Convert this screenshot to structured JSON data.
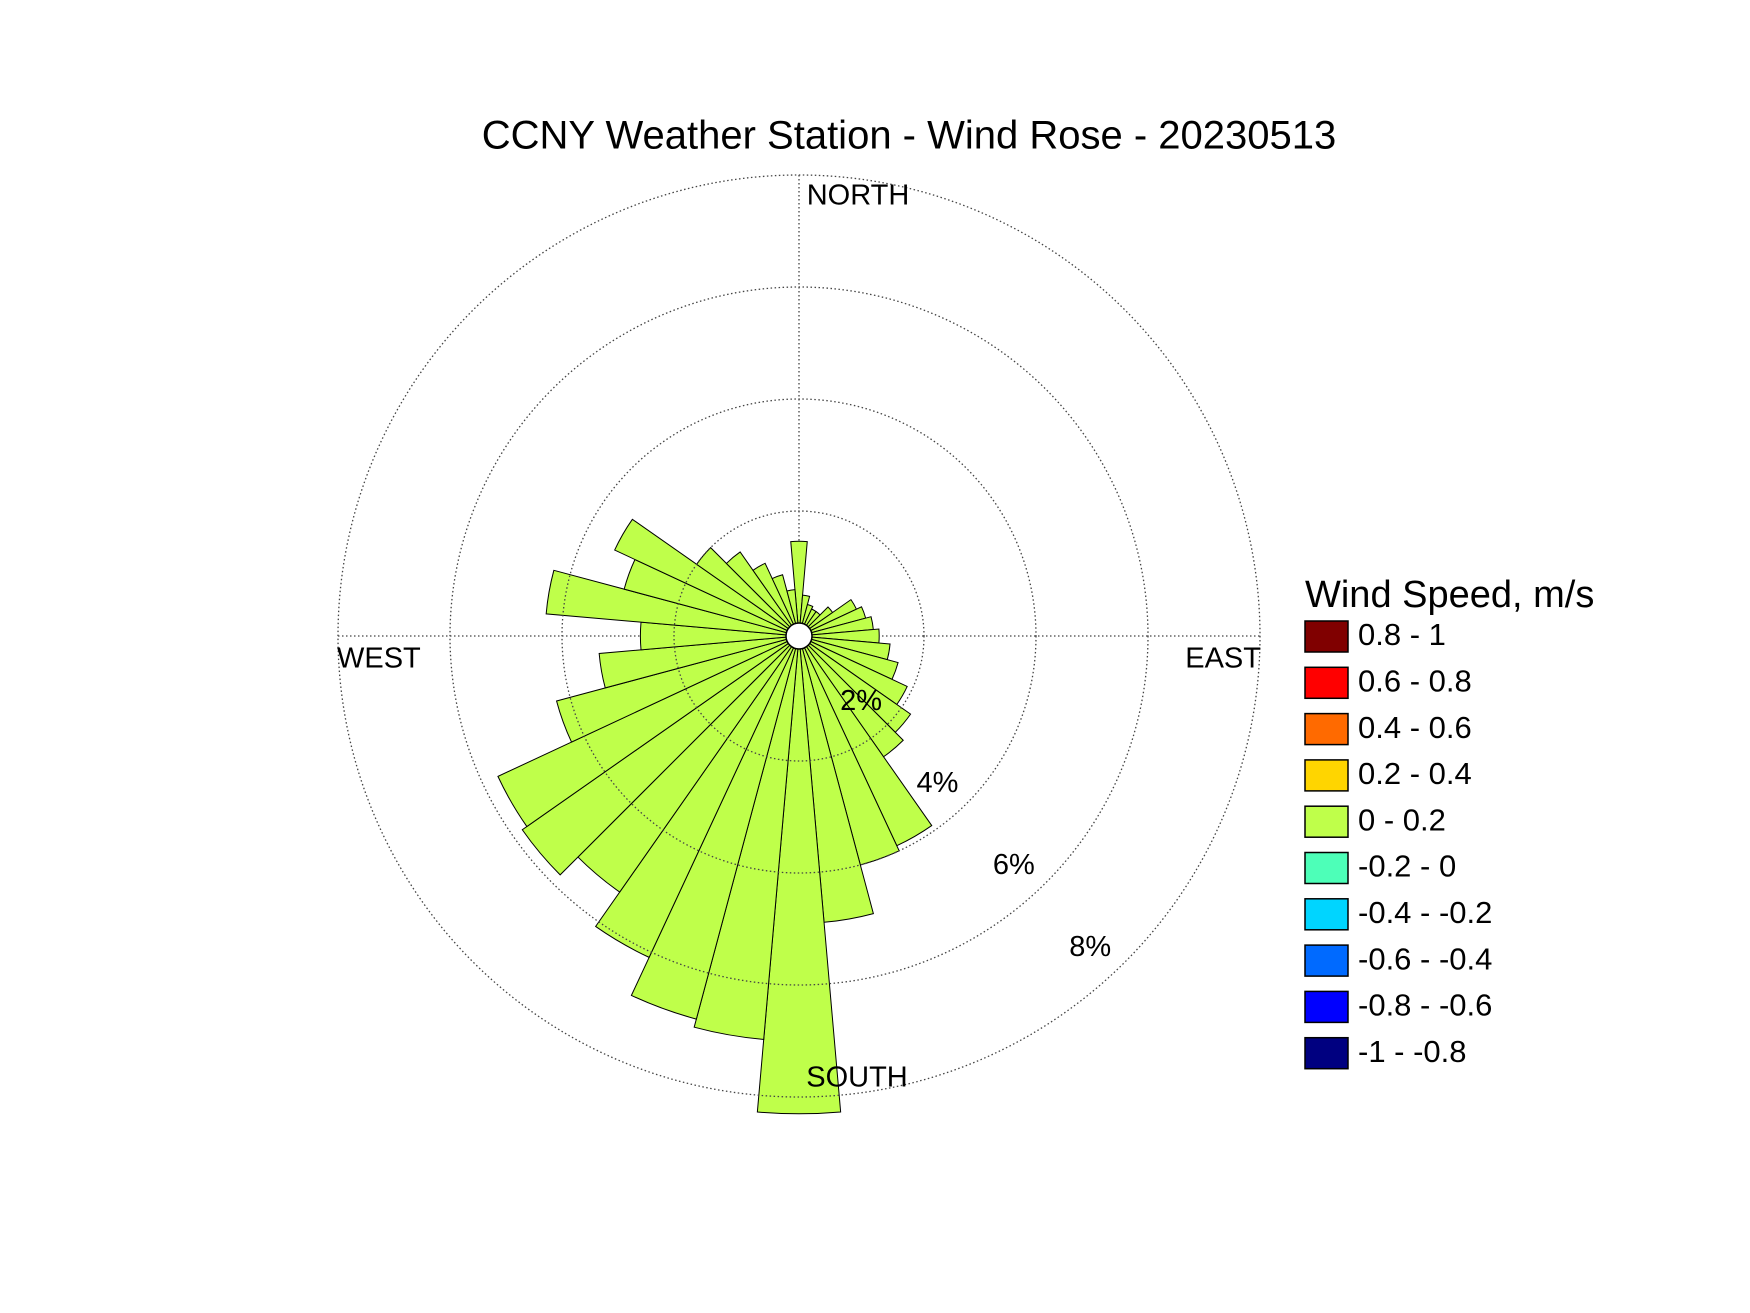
{
  "chart_data": {
    "type": "windrose",
    "title": "CCNY Weather Station - Wind Rose - 20230513",
    "direction_labels": [
      "NORTH",
      "EAST",
      "SOUTH",
      "WEST"
    ],
    "x": [
      0,
      10,
      20,
      30,
      40,
      50,
      60,
      70,
      80,
      90,
      100,
      110,
      120,
      130,
      140,
      150,
      160,
      170,
      180,
      190,
      200,
      210,
      220,
      230,
      240,
      250,
      260,
      270,
      280,
      290,
      300,
      310,
      320,
      330,
      340,
      350
    ],
    "rlim": [
      0,
      8
    ],
    "rticks": [
      {
        "value": 2,
        "label": "2%"
      },
      {
        "value": 4,
        "label": "4%"
      },
      {
        "value": 6,
        "label": "6%"
      },
      {
        "value": 8,
        "label": "8%"
      }
    ],
    "grid": true,
    "legend_title": "Wind Speed, m/s",
    "series": [
      {
        "name": "0.8 - 1",
        "color": "#800000"
      },
      {
        "name": "0.6 - 0.8",
        "color": "#ff0000"
      },
      {
        "name": "0.4 - 0.6",
        "color": "#ff6a00"
      },
      {
        "name": "0.2 - 0.4",
        "color": "#ffd500"
      },
      {
        "name": "0 - 0.2",
        "color": "#bfff4a",
        "values": [
          1.46,
          0.5,
          0.35,
          0.3,
          0.3,
          0.5,
          0.9,
          1.0,
          1.1,
          1.2,
          1.4,
          1.6,
          1.9,
          2.2,
          2.4,
          3.9,
          4.0,
          4.9,
          8.3,
          7.0,
          6.85,
          6.1,
          5.35,
          5.8,
          5.7,
          4.25,
          3.35,
          2.6,
          4.3,
          3.0,
          3.4,
          2.0,
          1.6,
          1.2,
          0.9,
          0.6
        ]
      },
      {
        "name": "-0.2 - 0",
        "color": "#4dffb8"
      },
      {
        "name": "-0.4 - -0.2",
        "color": "#00d5ff"
      },
      {
        "name": "-0.6 - -0.4",
        "color": "#006aff"
      },
      {
        "name": "-0.8 - -0.6",
        "color": "#0000ff"
      },
      {
        "name": "-1 - -0.8",
        "color": "#000080"
      }
    ]
  }
}
